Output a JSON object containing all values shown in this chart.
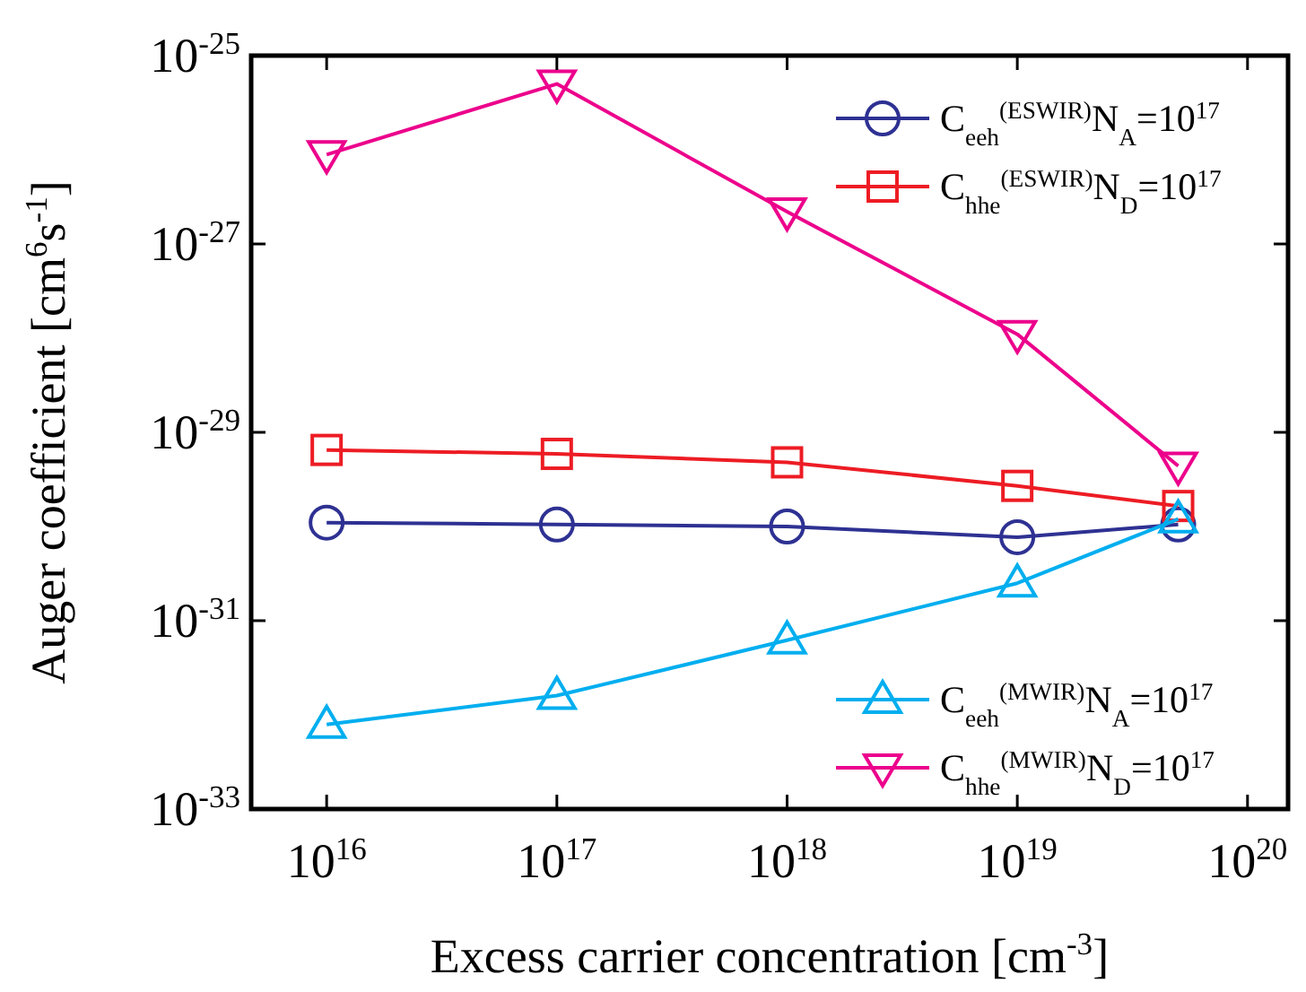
{
  "chart_data": {
    "type": "line",
    "xlabel": "Excess carrier concentration [cm$^{-3}$]",
    "ylabel": "Auger coefficient [cm$^{6}$s$^{-1}$]",
    "log": "xy",
    "xlim": [
      4700000000000000.0,
      1.5e+20
    ],
    "ylim": [
      1e-33,
      1e-25
    ],
    "xticks": [
      {
        "value": 1e+16,
        "label": "10$^{16}$"
      },
      {
        "value": 1e+17,
        "label": "10$^{17}$"
      },
      {
        "value": 1e+18,
        "label": "10$^{18}$"
      },
      {
        "value": 1e+19,
        "label": "10$^{19}$"
      },
      {
        "value": 1e+20,
        "label": "10$^{20}$"
      }
    ],
    "yticks": [
      {
        "value": 1e-33,
        "label": "10$^{-33}$"
      },
      {
        "value": 1e-31,
        "label": "10$^{-31}$"
      },
      {
        "value": 1e-29,
        "label": "10$^{-29}$"
      },
      {
        "value": 1e-27,
        "label": "10$^{-27}$"
      },
      {
        "value": 1e-25,
        "label": "10$^{-25}$"
      }
    ],
    "x": [
      1e+16,
      1e+17,
      1e+18,
      1e+19,
      5e+19
    ],
    "grid": false,
    "legend": "right",
    "line_style": "solid",
    "series": [
      {
        "name": "C$_{eeh}$$^{(ESWIR)}$N$_{A}$=10$^{17}$",
        "color": "#2e3192",
        "marker": "circle",
        "values": [
          1.1e-30,
          1.05e-30,
          1e-30,
          7.7e-31,
          1.05e-30
        ]
      },
      {
        "name": "C$_{hhe}$$^{(ESWIR)}$N$_{D}$=10$^{17}$",
        "color": "#ed1c24",
        "marker": "square",
        "values": [
          6.5e-30,
          5.9e-30,
          4.8e-30,
          2.7e-30,
          1.65e-30
        ]
      },
      {
        "name": "C$_{eeh}$$^{(MWIR)}$N$_{A}$=10$^{17}$",
        "color": "#00aeef",
        "marker": "triangle",
        "values": [
          7.9e-33,
          1.6e-32,
          6.2e-32,
          2.5e-31,
          1.2e-30
        ]
      },
      {
        "name": "C$_{hhe}$$^{(MWIR)}$N$_{D}$=10$^{17}$",
        "color": "#ec008c",
        "marker": "triangle-down",
        "values": [
          8.9e-27,
          5e-26,
          2.2e-27,
          1.1e-28,
          4.4e-30
        ]
      }
    ]
  }
}
